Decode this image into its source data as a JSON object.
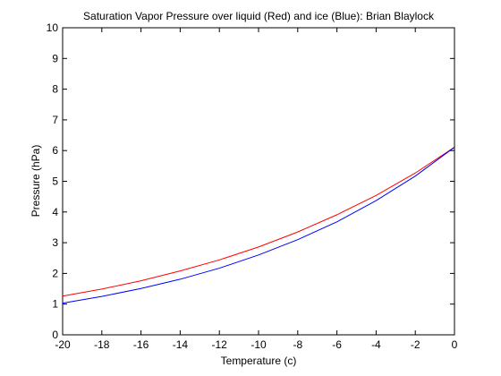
{
  "chart_data": {
    "type": "line",
    "title": "Saturation Vapor Pressure over liquid (Red) and ice (Blue): Brian Blaylock",
    "xlabel": "Temperature (c)",
    "ylabel": "Pressure (hPa)",
    "xlim": [
      -20,
      0
    ],
    "ylim": [
      0,
      10
    ],
    "xticks": [
      -20,
      -18,
      -16,
      -14,
      -12,
      -10,
      -8,
      -6,
      -4,
      -2,
      0
    ],
    "yticks": [
      0,
      1,
      2,
      3,
      4,
      5,
      6,
      7,
      8,
      9,
      10
    ],
    "grid": false,
    "series": [
      {
        "color": "#ff0000",
        "x": [
          -20,
          -18,
          -16,
          -14,
          -12,
          -10,
          -8,
          -6,
          -4,
          -2,
          0
        ],
        "y": [
          1.26,
          1.49,
          1.76,
          2.08,
          2.44,
          2.86,
          3.35,
          3.91,
          4.54,
          5.27,
          6.11
        ]
      },
      {
        "color": "#0000ff",
        "x": [
          -20,
          -18,
          -16,
          -14,
          -12,
          -10,
          -8,
          -6,
          -4,
          -2,
          0
        ],
        "y": [
          1.03,
          1.25,
          1.51,
          1.81,
          2.17,
          2.6,
          3.1,
          3.68,
          4.37,
          5.17,
          6.11
        ]
      }
    ]
  }
}
